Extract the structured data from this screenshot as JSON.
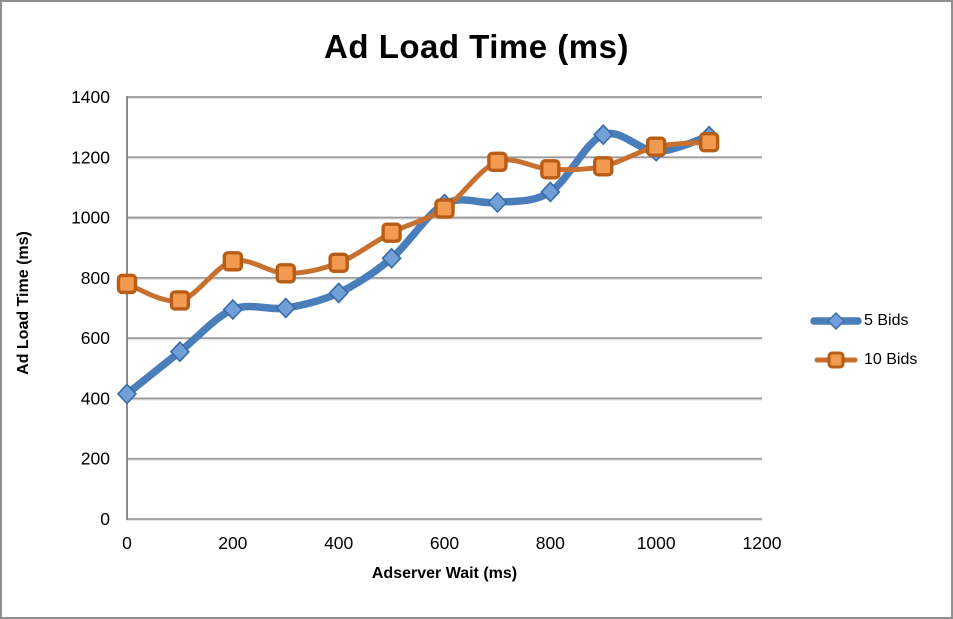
{
  "window": {
    "background": "#ffffff",
    "frame_border_color": "#8f8f8f"
  },
  "chart_data": {
    "type": "line",
    "title": "Ad Load Time (ms)",
    "xlabel": "Adserver Wait (ms)",
    "ylabel": "Ad Load Time (ms)",
    "x": [
      0,
      100,
      200,
      300,
      400,
      500,
      600,
      700,
      800,
      900,
      1000,
      1100
    ],
    "series": [
      {
        "name": "5 Bids",
        "values": [
          415,
          555,
          695,
          700,
          750,
          865,
          1045,
          1050,
          1085,
          1275,
          1220,
          1270
        ],
        "marker": "diamond",
        "line_color": "#4A7EBB",
        "marker_fill": "#71A0D8",
        "marker_stroke": "#3A6BA5",
        "line_width": 7.5
      },
      {
        "name": "10 Bids",
        "values": [
          780,
          725,
          855,
          815,
          850,
          950,
          1030,
          1185,
          1160,
          1170,
          1235,
          1250
        ],
        "marker": "square",
        "line_color": "#C8702F",
        "marker_fill": "#F19A50",
        "marker_stroke": "#B95D16",
        "line_width": 5
      }
    ],
    "xlim": [
      0,
      1200
    ],
    "ylim": [
      0,
      1400
    ],
    "x_ticks": [
      0,
      200,
      400,
      600,
      800,
      1000,
      1200
    ],
    "y_ticks": [
      0,
      200,
      400,
      600,
      800,
      1000,
      1200,
      1400
    ],
    "grid": true,
    "smooth": true,
    "legend_position": "right",
    "gridline_color": "#9A9A9A",
    "gridline_highlight_color": "#E2E2E2",
    "axis_color": "#7F7F7F",
    "tick_label_color": "#000000"
  }
}
